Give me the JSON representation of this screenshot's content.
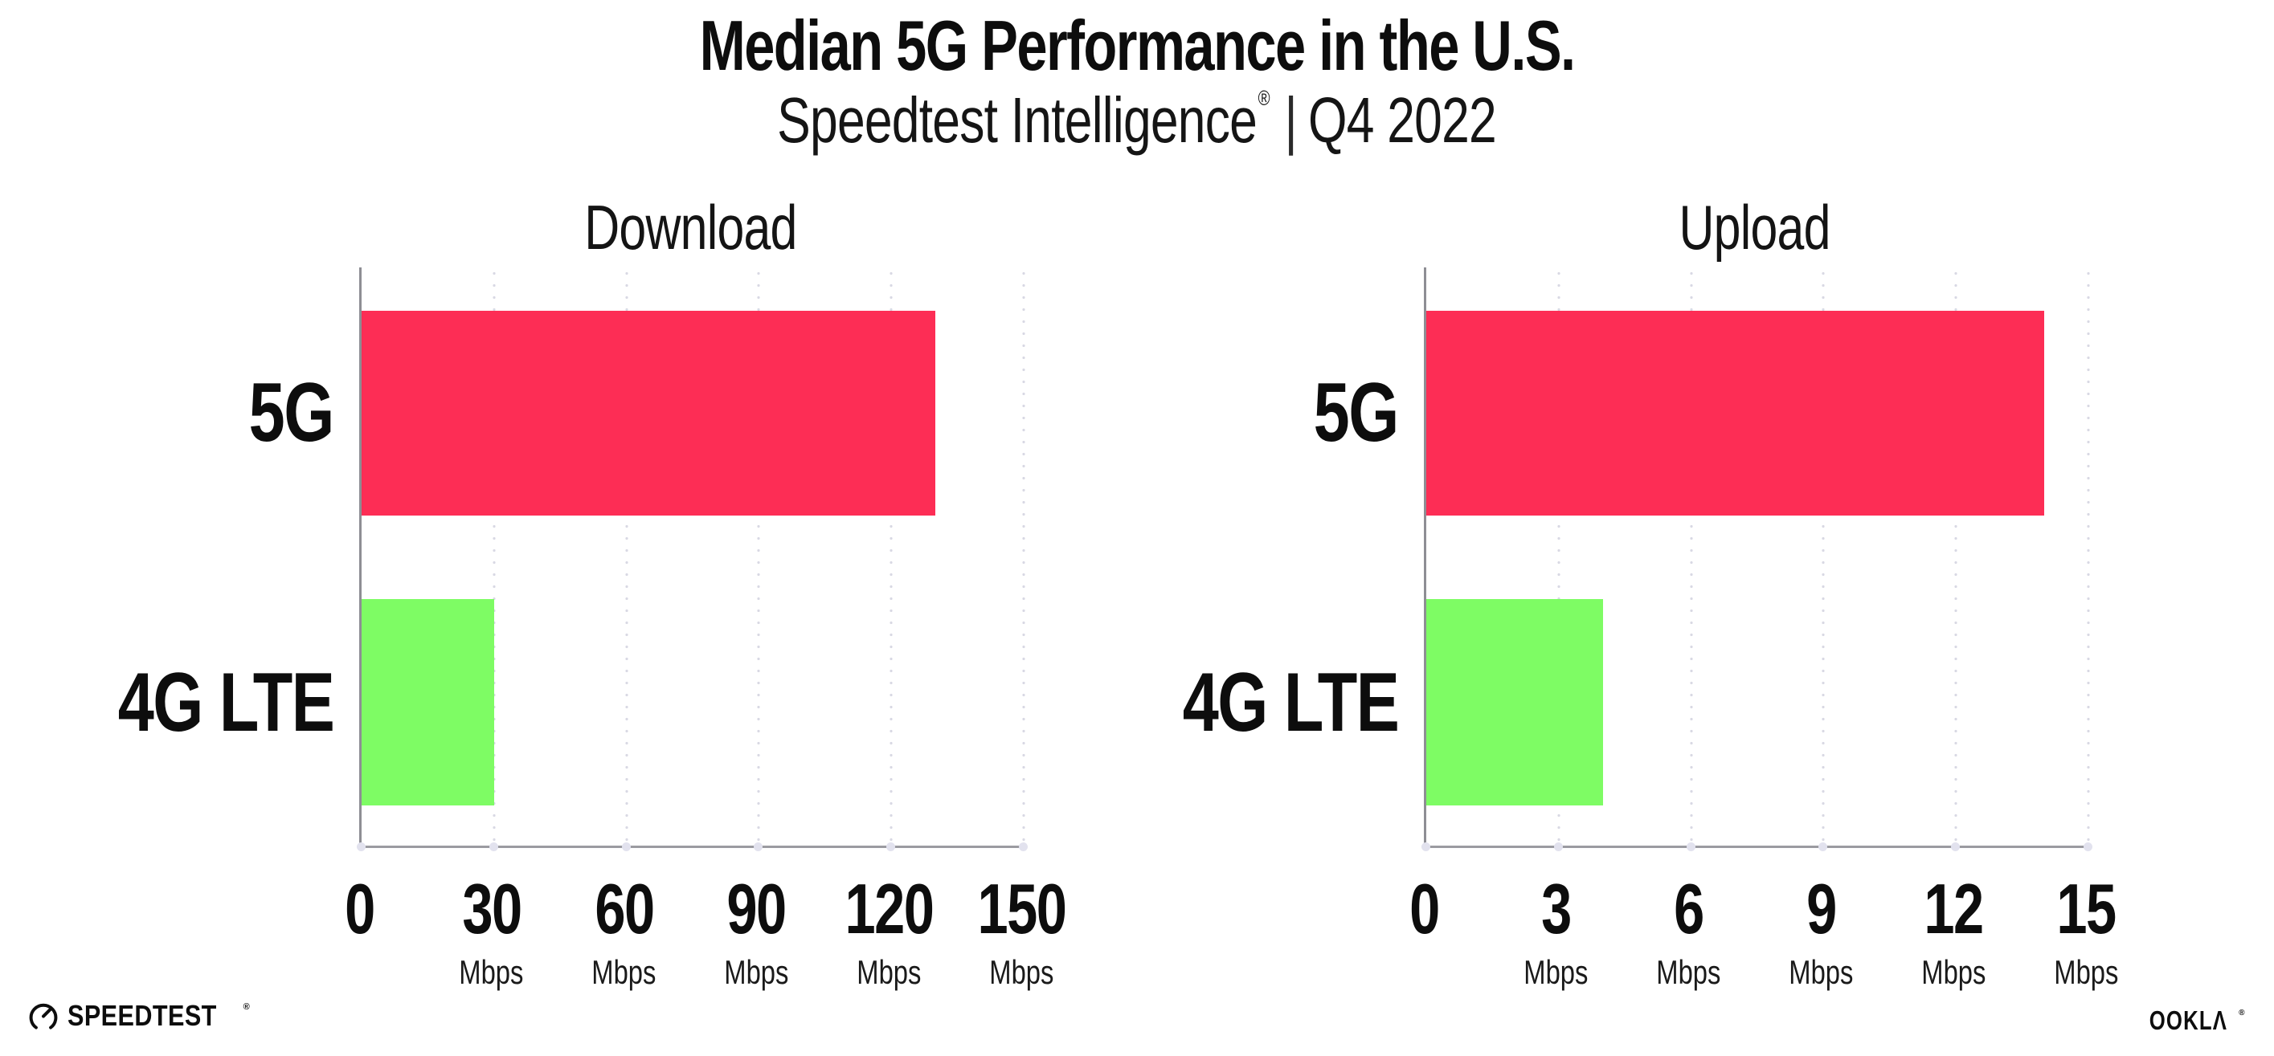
{
  "header": {
    "title": "Median 5G Performance in the U.S.",
    "subtitle": {
      "brand": "Speedtest Intelligence",
      "reg_mark": "®",
      "divider": "|",
      "period": "Q4 2022"
    }
  },
  "colors": {
    "bar_5g": "#FD2D55",
    "bar_4g_lte": "#7EFC64",
    "gridline_dots": "#D9D9E4",
    "axis_line": "#8E8E94",
    "baseline": "#9B9BA1",
    "tick_dot": "#E2E2EE",
    "text": "#0D0D0D",
    "background": "#FFFFFF"
  },
  "chart_data": [
    {
      "type": "bar",
      "orientation": "horizontal",
      "title": "Download",
      "categories": [
        "5G",
        "4G LTE"
      ],
      "values": [
        130,
        30
      ],
      "value_unit": "Mbps",
      "xlim": [
        0,
        150
      ],
      "xticks": [
        0,
        30,
        60,
        90,
        120,
        150
      ],
      "xtick_unit": "Mbps",
      "xtick_unit_on_zero": false,
      "bar_colors": [
        "#FD2D55",
        "#7EFC64"
      ],
      "grid": "dotted vertical gridlines at each tick",
      "legend": "none"
    },
    {
      "type": "bar",
      "orientation": "horizontal",
      "title": "Upload",
      "categories": [
        "5G",
        "4G LTE"
      ],
      "values": [
        14,
        4
      ],
      "value_unit": "Mbps",
      "xlim": [
        0,
        15
      ],
      "xticks": [
        0,
        3,
        6,
        9,
        12,
        15
      ],
      "xtick_unit": "Mbps",
      "xtick_unit_on_zero": false,
      "bar_colors": [
        "#FD2D55",
        "#7EFC64"
      ],
      "grid": "dotted vertical gridlines at each tick",
      "legend": "none"
    }
  ],
  "footer": {
    "speedtest": {
      "label": "SPEEDTEST",
      "mark": "®",
      "icon": "speedtest-gauge-icon"
    },
    "ookla": {
      "label": "OOKLΛ",
      "mark": "®"
    }
  }
}
